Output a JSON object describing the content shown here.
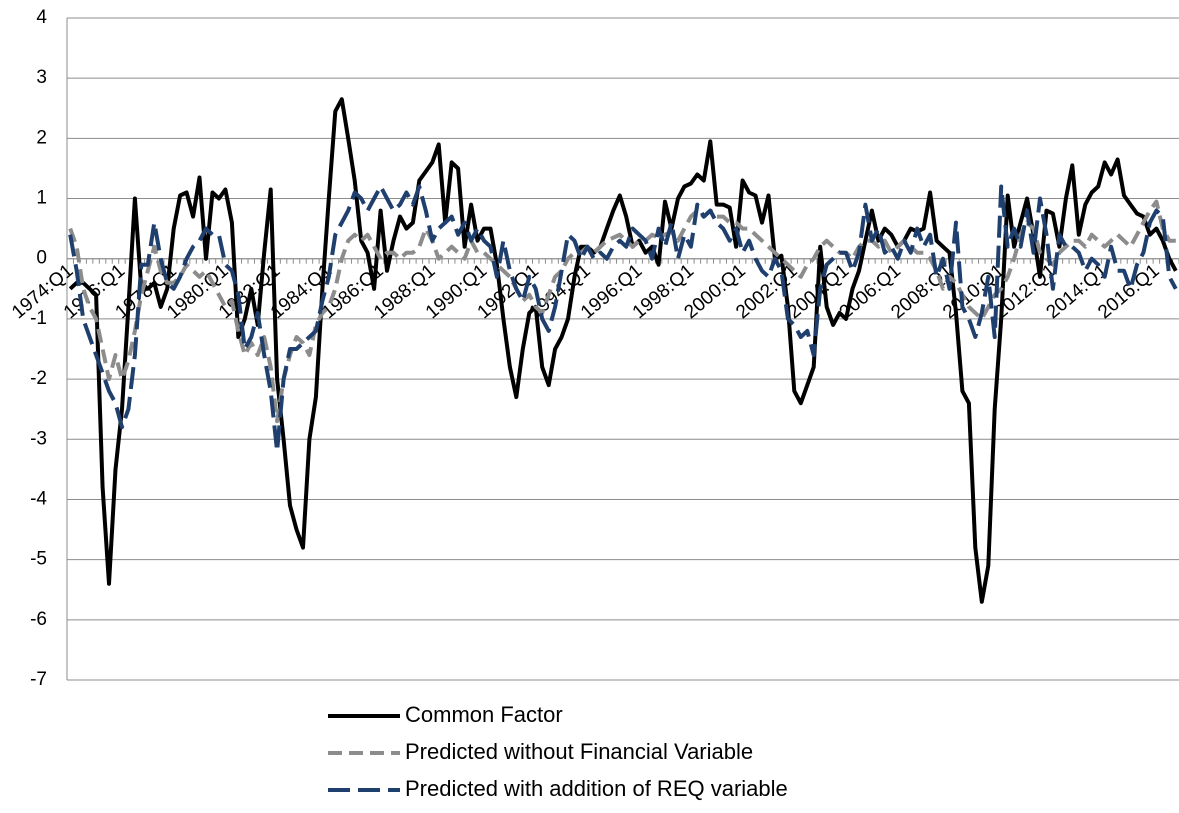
{
  "chart_data": {
    "type": "line",
    "categories": [
      "1974:Q1",
      null,
      null,
      null,
      null,
      null,
      null,
      null,
      "1976:Q1",
      null,
      null,
      null,
      null,
      null,
      null,
      null,
      "1978:Q1",
      null,
      null,
      null,
      null,
      null,
      null,
      null,
      "1980:Q1",
      null,
      null,
      null,
      null,
      null,
      null,
      null,
      "1982:Q1",
      null,
      null,
      null,
      null,
      null,
      null,
      null,
      "1984:Q1",
      null,
      null,
      null,
      null,
      null,
      null,
      null,
      "1986:Q1",
      null,
      null,
      null,
      null,
      null,
      null,
      null,
      "1988:Q1",
      null,
      null,
      null,
      null,
      null,
      null,
      null,
      "1990:Q1",
      null,
      null,
      null,
      null,
      null,
      null,
      null,
      "1992:Q1",
      null,
      null,
      null,
      null,
      null,
      null,
      null,
      "1994:Q1",
      null,
      null,
      null,
      null,
      null,
      null,
      null,
      "1996:Q1",
      null,
      null,
      null,
      null,
      null,
      null,
      null,
      "1998:Q1",
      null,
      null,
      null,
      null,
      null,
      null,
      null,
      "2000:Q1",
      null,
      null,
      null,
      null,
      null,
      null,
      null,
      "2002:Q1",
      null,
      null,
      null,
      null,
      null,
      null,
      null,
      "2004:Q1",
      null,
      null,
      null,
      null,
      null,
      null,
      null,
      "2006:Q1",
      null,
      null,
      null,
      null,
      null,
      null,
      null,
      "2008:Q1",
      null,
      null,
      null,
      null,
      null,
      null,
      null,
      "2010:Q1",
      null,
      null,
      null,
      null,
      null,
      null,
      null,
      "2012:Q1",
      null,
      null,
      null,
      null,
      null,
      null,
      null,
      "2014:Q1",
      null,
      null,
      null,
      null,
      null,
      null,
      null,
      "2016:Q1",
      null,
      null,
      null
    ],
    "series": [
      {
        "name": "Common Factor",
        "color": "#000000",
        "dash": "none",
        "values": [
          -0.5,
          -0.4,
          -0.4,
          -0.5,
          -0.6,
          -3.8,
          -5.4,
          -3.5,
          -2.5,
          -0.8,
          1.0,
          -0.5,
          -0.5,
          -0.4,
          -0.8,
          -0.5,
          0.5,
          1.05,
          1.1,
          0.7,
          1.35,
          0.0,
          1.1,
          1.0,
          1.15,
          0.6,
          -1.3,
          -1.0,
          -0.5,
          -1.1,
          0.1,
          1.15,
          -2.0,
          -3.0,
          -4.1,
          -4.5,
          -4.8,
          -3.0,
          -2.3,
          -0.5,
          1.0,
          2.45,
          2.65,
          2.0,
          1.3,
          0.3,
          0.1,
          -0.5,
          0.8,
          -0.2,
          0.3,
          0.7,
          0.5,
          0.6,
          1.3,
          1.45,
          1.6,
          1.9,
          0.6,
          1.6,
          1.5,
          0.2,
          0.9,
          0.3,
          0.5,
          0.5,
          -0.1,
          -1.0,
          -1.8,
          -2.3,
          -1.5,
          -0.9,
          -0.8,
          -1.8,
          -2.1,
          -1.5,
          -1.3,
          -1.0,
          -0.3,
          0.2,
          0.2,
          0.1,
          0.2,
          0.5,
          0.8,
          1.05,
          0.7,
          0.2,
          0.3,
          0.1,
          0.2,
          -0.1,
          0.95,
          0.5,
          1.0,
          1.2,
          1.25,
          1.4,
          1.3,
          1.95,
          0.9,
          0.9,
          0.85,
          0.2,
          1.3,
          1.1,
          1.05,
          0.6,
          1.05,
          0.0,
          0.05,
          -0.8,
          -2.2,
          -2.4,
          -2.1,
          -1.8,
          0.2,
          -0.8,
          -1.1,
          -0.9,
          -1.0,
          -0.5,
          -0.2,
          0.3,
          0.8,
          0.3,
          0.5,
          0.4,
          0.2,
          0.3,
          0.5,
          0.45,
          0.5,
          1.1,
          0.3,
          0.2,
          0.1,
          -0.9,
          -2.2,
          -2.4,
          -4.8,
          -5.7,
          -5.1,
          -2.5,
          -1.0,
          1.05,
          0.2,
          0.6,
          1.0,
          0.4,
          -0.3,
          0.8,
          0.75,
          0.2,
          1.0,
          1.55,
          0.4,
          0.9,
          1.1,
          1.2,
          1.6,
          1.4,
          1.65,
          1.05,
          0.9,
          0.75,
          0.7,
          0.4,
          0.5,
          0.3,
          0.0,
          -0.2
        ]
      },
      {
        "name": "Predicted without Financial Variable",
        "color": "#8c8c8c",
        "dash": "14,7",
        "values": [
          0.5,
          0.2,
          -0.5,
          -0.8,
          -1.0,
          -1.5,
          -2.0,
          -1.6,
          -2.0,
          -1.7,
          -1.2,
          -0.6,
          -0.2,
          0.2,
          -0.2,
          -0.4,
          -0.4,
          -0.3,
          -0.1,
          -0.2,
          -0.3,
          -0.2,
          -0.4,
          -0.6,
          -0.8,
          -0.7,
          -1.2,
          -1.6,
          -1.4,
          -1.6,
          -1.3,
          -1.8,
          -2.7,
          -2.0,
          -1.6,
          -1.3,
          -1.4,
          -1.6,
          -1.1,
          -0.9,
          -0.8,
          -0.5,
          0.0,
          0.3,
          0.4,
          0.3,
          0.4,
          0.2,
          0.0,
          0.1,
          0.1,
          0.0,
          0.1,
          0.1,
          0.2,
          0.5,
          0.3,
          0.0,
          0.1,
          0.2,
          0.1,
          0.0,
          0.3,
          0.1,
          0.1,
          0.0,
          -0.1,
          -0.2,
          -0.3,
          -0.5,
          -0.7,
          -0.6,
          -0.8,
          -0.9,
          -0.6,
          -0.3,
          -0.2,
          0.0,
          0.1,
          0.1,
          0.2,
          0.1,
          0.2,
          0.3,
          0.35,
          0.4,
          0.3,
          0.2,
          0.3,
          0.3,
          0.4,
          0.35,
          0.4,
          0.45,
          0.3,
          0.5,
          0.7,
          0.8,
          0.7,
          0.8,
          0.7,
          0.7,
          0.6,
          0.6,
          0.5,
          0.5,
          0.4,
          0.3,
          0.2,
          0.1,
          0.0,
          -0.1,
          -0.2,
          -0.3,
          -0.1,
          0.0,
          0.2,
          0.3,
          0.2,
          0.1,
          0.1,
          0.0,
          0.2,
          0.3,
          0.3,
          0.2,
          0.3,
          0.1,
          0.2,
          0.3,
          0.2,
          0.1,
          0.1,
          0.0,
          -0.2,
          -0.5,
          -0.3,
          -0.4,
          -0.6,
          -0.8,
          -0.9,
          -1.0,
          -0.8,
          -0.6,
          -0.5,
          -0.3,
          0.0,
          0.4,
          0.6,
          0.5,
          0.1,
          0.0,
          -0.1,
          0.1,
          0.2,
          0.3,
          0.3,
          0.2,
          0.4,
          0.3,
          0.2,
          0.3,
          0.4,
          0.3,
          0.2,
          0.4,
          0.6,
          0.8,
          0.95,
          0.5,
          0.3,
          0.3
        ]
      },
      {
        "name": "Predicted with addition of REQ variable",
        "color": "#1f3f6e",
        "dash": "22,8",
        "values": [
          0.4,
          -0.2,
          -1.0,
          -1.3,
          -1.6,
          -1.9,
          -2.2,
          -2.4,
          -2.8,
          -2.5,
          -1.6,
          -0.1,
          -0.1,
          0.6,
          0.0,
          -0.4,
          -0.5,
          -0.3,
          0.0,
          0.2,
          0.3,
          0.5,
          0.4,
          0.4,
          -0.1,
          -0.2,
          -0.6,
          -1.5,
          -1.3,
          -0.9,
          -1.6,
          -2.2,
          -3.2,
          -2.0,
          -1.5,
          -1.5,
          -1.4,
          -1.3,
          -1.2,
          -0.7,
          -0.3,
          0.4,
          0.6,
          0.8,
          1.1,
          1.0,
          0.8,
          1.0,
          1.2,
          1.0,
          0.8,
          0.9,
          1.1,
          0.9,
          1.2,
          0.8,
          0.3,
          0.5,
          0.6,
          0.7,
          0.4,
          0.6,
          0.3,
          0.5,
          0.3,
          0.2,
          -0.3,
          0.3,
          -0.2,
          -0.5,
          -0.7,
          -0.3,
          -0.5,
          -1.0,
          -1.2,
          -0.8,
          -0.2,
          0.4,
          0.3,
          0.0,
          0.2,
          0.0,
          0.1,
          0.0,
          0.2,
          0.3,
          0.2,
          0.5,
          0.4,
          0.3,
          0.0,
          0.5,
          0.2,
          0.6,
          0.0,
          0.4,
          0.2,
          0.9,
          0.7,
          0.8,
          0.6,
          0.5,
          0.3,
          0.5,
          0.1,
          0.3,
          0.0,
          -0.2,
          -0.3,
          0.0,
          -0.2,
          -1.0,
          -1.1,
          -1.3,
          -1.2,
          -1.6,
          -0.5,
          -0.1,
          0.0,
          0.1,
          0.1,
          -0.2,
          0.1,
          0.9,
          0.3,
          0.5,
          0.1,
          0.2,
          0.0,
          0.3,
          0.1,
          0.5,
          0.2,
          0.4,
          -0.3,
          0.0,
          -0.5,
          0.6,
          -0.8,
          -1.0,
          -1.3,
          -0.9,
          -0.3,
          -1.3,
          1.2,
          0.2,
          0.5,
          0.2,
          0.8,
          0.1,
          1.0,
          0.4,
          -0.5,
          0.4,
          0.2,
          0.2,
          0.1,
          -0.2,
          0.0,
          -0.1,
          -0.3,
          0.2,
          -0.2,
          -0.2,
          -0.5,
          -0.1,
          0.1,
          0.6,
          0.8,
          0.7,
          -0.3,
          -0.5
        ]
      }
    ],
    "ylim": [
      -7,
      4
    ],
    "yticks": [
      -7,
      -6,
      -5,
      -4,
      -3,
      -2,
      -1,
      0,
      1,
      2,
      3,
      4
    ],
    "grid": true
  }
}
